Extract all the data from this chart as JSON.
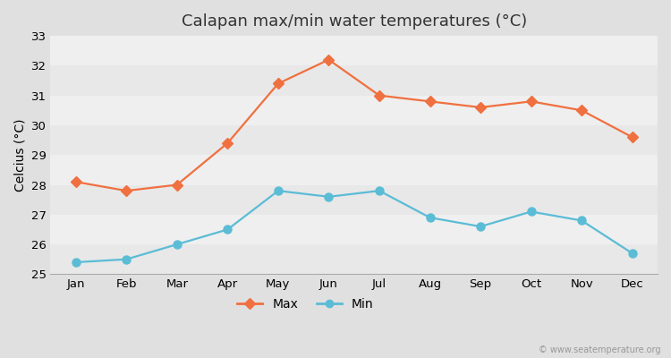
{
  "months": [
    "Jan",
    "Feb",
    "Mar",
    "Apr",
    "May",
    "Jun",
    "Jul",
    "Aug",
    "Sep",
    "Oct",
    "Nov",
    "Dec"
  ],
  "max_temps": [
    28.1,
    27.8,
    28.0,
    29.4,
    31.4,
    32.2,
    31.0,
    30.8,
    30.6,
    30.8,
    30.5,
    29.6
  ],
  "min_temps": [
    25.4,
    25.5,
    26.0,
    26.5,
    27.8,
    27.6,
    27.8,
    26.9,
    26.6,
    27.1,
    26.8,
    25.7
  ],
  "max_color": "#f07040",
  "min_color": "#5bbcd6",
  "title": "Calapan max/min water temperatures (°C)",
  "ylabel": "Celcius (°C)",
  "ylim": [
    25,
    33
  ],
  "yticks": [
    25,
    26,
    27,
    28,
    29,
    30,
    31,
    32,
    33
  ],
  "band_colors": [
    "#e8e8e8",
    "#efefef"
  ],
  "outer_bg": "#e0e0e0",
  "watermark": "© www.seatemperature.org",
  "title_fontsize": 13,
  "label_fontsize": 10,
  "tick_fontsize": 9.5,
  "legend_labels": [
    "Max",
    "Min"
  ]
}
